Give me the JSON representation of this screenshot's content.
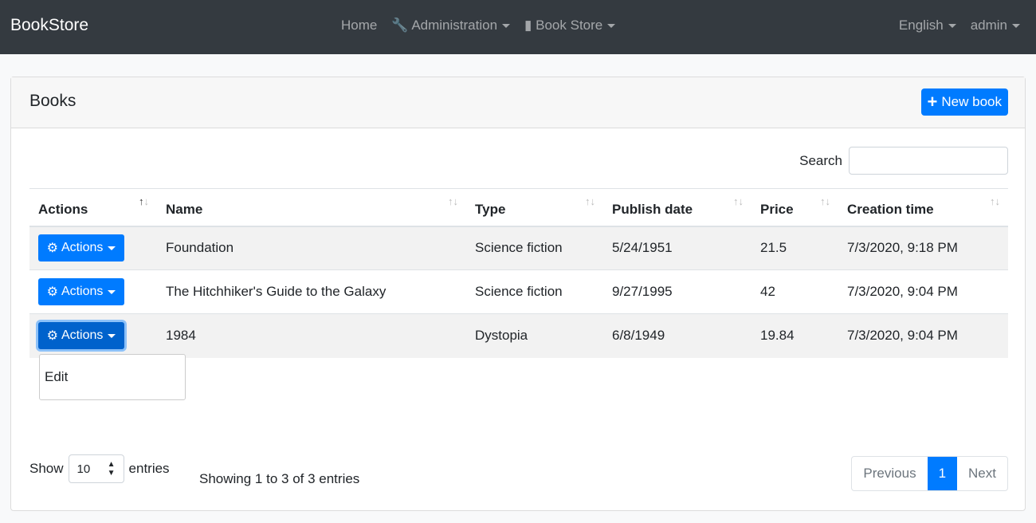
{
  "nav": {
    "brand": "BookStore",
    "home": "Home",
    "admin": "Administration",
    "store": "Book Store",
    "lang": "English",
    "user": "admin"
  },
  "card": {
    "title": "Books",
    "new_book": "New book"
  },
  "search": {
    "label": "Search",
    "value": ""
  },
  "columns": [
    "Actions",
    "Name",
    "Type",
    "Publish date",
    "Price",
    "Creation time"
  ],
  "rows": [
    {
      "action": "Actions",
      "name": "Foundation",
      "type": "Science fiction",
      "publish": "5/24/1951",
      "price": "21.5",
      "created": "7/3/2020, 9:18 PM"
    },
    {
      "action": "Actions",
      "name": "The Hitchhiker's Guide to the Galaxy",
      "type": "Science fiction",
      "publish": "9/27/1995",
      "price": "42",
      "created": "7/3/2020, 9:04 PM"
    },
    {
      "action": "Actions",
      "name": "1984",
      "type": "Dystopia",
      "publish": "6/8/1949",
      "price": "19.84",
      "created": "7/3/2020, 9:04 PM"
    }
  ],
  "menu": {
    "edit": "Edit"
  },
  "footer": {
    "show": "Show",
    "page_size": "10",
    "entries": "entries",
    "info": "Showing 1 to 3 of 3 entries",
    "prev": "Previous",
    "page": "1",
    "next": "Next"
  },
  "colors": {
    "primary": "#007bff",
    "navbar": "#343a40"
  }
}
